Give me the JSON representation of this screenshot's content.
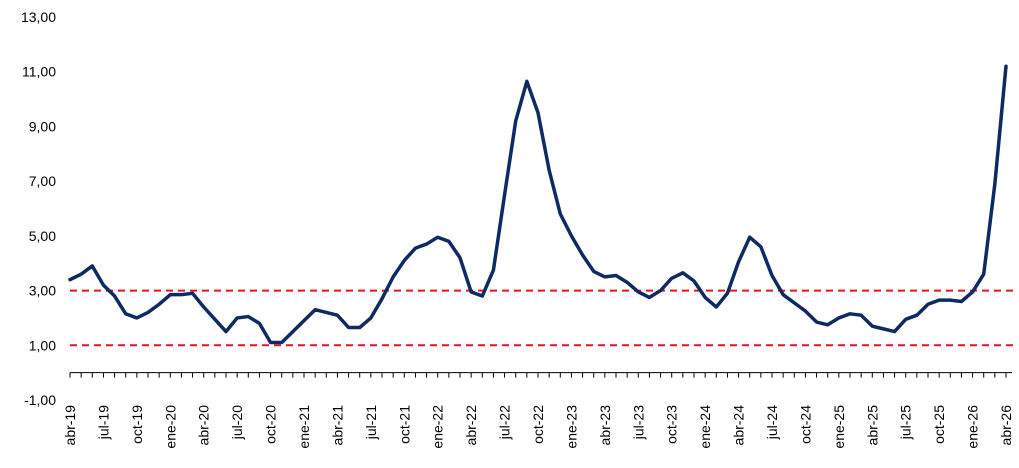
{
  "chart_data": {
    "type": "line",
    "categories": [
      "abr-19",
      null,
      null,
      "jul-19",
      null,
      null,
      "oct-19",
      null,
      null,
      "ene-20",
      null,
      null,
      "abr-20",
      null,
      null,
      "jul-20",
      null,
      null,
      "oct-20",
      null,
      null,
      "ene-21",
      null,
      null,
      "abr-21",
      null,
      null,
      "jul-21",
      null,
      null,
      "oct-21",
      null,
      null,
      "ene-22",
      null,
      null,
      "abr-22",
      null,
      null,
      "jul-22",
      null,
      null,
      "oct-22",
      null,
      null,
      "ene-23",
      null,
      null,
      "abr-23",
      null,
      null,
      "jul-23",
      null,
      null,
      "oct-23",
      null,
      null,
      "ene-24",
      null,
      null,
      "abr-24",
      null,
      null,
      "jul-24",
      null,
      null,
      "oct-24",
      null,
      null,
      "ene-25",
      null,
      null,
      "abr-25",
      null,
      null,
      "jul-25",
      null,
      null,
      "oct-25",
      null,
      null,
      "ene-26",
      null,
      null,
      "abr-26"
    ],
    "values": [
      3.4,
      3.6,
      3.9,
      3.2,
      2.8,
      2.15,
      2.0,
      2.2,
      2.5,
      2.85,
      2.85,
      2.9,
      2.4,
      1.95,
      1.5,
      2.0,
      2.05,
      1.8,
      1.1,
      1.1,
      1.5,
      1.9,
      2.3,
      2.2,
      2.1,
      1.65,
      1.65,
      2.0,
      2.7,
      3.5,
      4.1,
      4.55,
      4.7,
      4.95,
      4.8,
      4.2,
      2.95,
      2.8,
      3.75,
      6.5,
      9.2,
      10.65,
      9.5,
      7.4,
      5.8,
      5.0,
      4.3,
      3.7,
      3.5,
      3.55,
      3.3,
      2.95,
      2.75,
      3.0,
      3.45,
      3.65,
      3.35,
      2.75,
      2.4,
      2.9,
      4.05,
      4.95,
      4.6,
      3.55,
      2.85,
      2.55,
      2.25,
      1.85,
      1.75,
      2.0,
      2.15,
      2.1,
      1.7,
      1.6,
      1.5,
      1.95,
      2.1,
      2.5,
      2.65,
      2.65,
      2.6,
      2.95,
      3.6,
      6.9,
      11.2
    ],
    "color": "#0e2a63",
    "ylim": [
      -1,
      13
    ],
    "yticks": [
      {
        "value": -1,
        "label": "-1,00"
      },
      {
        "value": 1,
        "label": "1,00"
      },
      {
        "value": 3,
        "label": "3,00"
      },
      {
        "value": 5,
        "label": "5,00"
      },
      {
        "value": 7,
        "label": "7,00"
      },
      {
        "value": 9,
        "label": "9,00"
      },
      {
        "value": 11,
        "label": "11,00"
      },
      {
        "value": 13,
        "label": "13,00"
      }
    ],
    "reference_lines": [
      {
        "value": 3,
        "color": "#e8141b"
      },
      {
        "value": 1,
        "color": "#e8141b"
      }
    ]
  }
}
